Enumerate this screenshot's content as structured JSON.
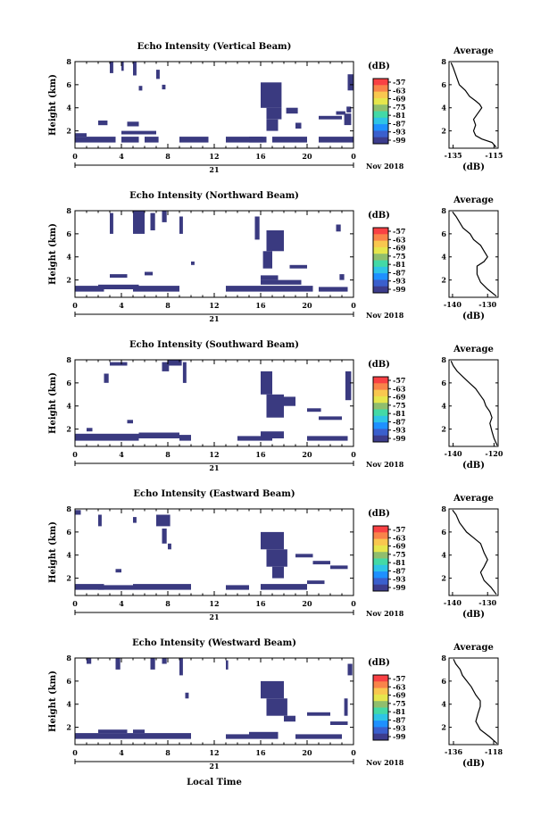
{
  "chart_data": {
    "common": {
      "x_ticks": [
        "0",
        "4",
        "8",
        "12",
        "16",
        "20",
        "0"
      ],
      "x_range": [
        0,
        24
      ],
      "y_ticks": [
        "2",
        "4",
        "6",
        "8"
      ],
      "y_range": [
        0.5,
        8
      ],
      "ylabel": "Height (km)",
      "day_label": "21",
      "month_label": "Nov 2018",
      "xlabel": "Local Time",
      "colorbar_unit": "(dB)",
      "colorbar_ticks": [
        "-57",
        "-63",
        "-69",
        "-75",
        "-81",
        "-87",
        "-93",
        "-99"
      ],
      "colorbar_colors": [
        "#f94144",
        "#f9844a",
        "#f9c74f",
        "#e6e64c",
        "#90be6d",
        "#43d9a6",
        "#2ec4e6",
        "#1e90ff",
        "#3a5fcd",
        "#3c3c8c"
      ],
      "avg_title": "Average",
      "avg_unit": "(dB)",
      "cell_color": "#3a3a80"
    },
    "panels": [
      {
        "type": "heatmap",
        "title": "Echo Intensity (Vertical Beam)",
        "avg_xticks": [
          "-135",
          "-115"
        ],
        "avg_xrange": [
          -137,
          -113
        ],
        "avg_profile": [
          [
            -114,
            0.6
          ],
          [
            -116,
            1.0
          ],
          [
            -121,
            1.3
          ],
          [
            -124,
            1.6
          ],
          [
            -125,
            2.0
          ],
          [
            -124,
            2.5
          ],
          [
            -125,
            3.0
          ],
          [
            -123,
            3.5
          ],
          [
            -121,
            4.0
          ],
          [
            -122,
            4.3
          ],
          [
            -124,
            4.6
          ],
          [
            -127,
            5.0
          ],
          [
            -129,
            5.5
          ],
          [
            -132,
            6.0
          ],
          [
            -133,
            6.5
          ],
          [
            -134,
            7.0
          ],
          [
            -135,
            7.5
          ],
          [
            -136,
            7.9
          ]
        ],
        "cells": [
          [
            0,
            1.0,
            3.5,
            0.5
          ],
          [
            4,
            1.0,
            1.5,
            0.5
          ],
          [
            6,
            1.0,
            1.2,
            0.5
          ],
          [
            9,
            1.0,
            2.5,
            0.5
          ],
          [
            13,
            1.0,
            3.5,
            0.5
          ],
          [
            17,
            1.0,
            3.0,
            0.5
          ],
          [
            21,
            1.0,
            3.0,
            0.5
          ],
          [
            0,
            1.5,
            1.0,
            0.3
          ],
          [
            4,
            1.7,
            3.0,
            0.3
          ],
          [
            2,
            2.5,
            0.8,
            0.4
          ],
          [
            4.5,
            2.4,
            1.0,
            0.4
          ],
          [
            3,
            7.0,
            0.3,
            1.0
          ],
          [
            4,
            7.2,
            0.2,
            0.8
          ],
          [
            5,
            6.8,
            0.3,
            1.2
          ],
          [
            7,
            6.5,
            0.3,
            0.8
          ],
          [
            5.5,
            5.5,
            0.3,
            0.4
          ],
          [
            7.5,
            5.6,
            0.3,
            0.4
          ],
          [
            16,
            4.0,
            1.8,
            2.2
          ],
          [
            16.5,
            3.0,
            1.3,
            1.0
          ],
          [
            16.5,
            2.0,
            1.0,
            1.0
          ],
          [
            15,
            1.0,
            1.2,
            0.5
          ],
          [
            18.2,
            3.5,
            1.0,
            0.5
          ],
          [
            19,
            2.2,
            0.5,
            0.5
          ],
          [
            21,
            3.0,
            2.0,
            0.3
          ],
          [
            22.5,
            3.4,
            0.8,
            0.3
          ],
          [
            23.2,
            2.5,
            0.6,
            1.0
          ],
          [
            23.5,
            5.5,
            0.5,
            1.4
          ],
          [
            23.4,
            3.6,
            0.4,
            0.5
          ]
        ]
      },
      {
        "type": "heatmap",
        "title": "Echo Intensity (Northward Beam)",
        "avg_xticks": [
          "-140",
          "-130"
        ],
        "avg_xrange": [
          -141,
          -127
        ],
        "avg_profile": [
          [
            -127.5,
            0.6
          ],
          [
            -130,
            1.2
          ],
          [
            -132,
            1.8
          ],
          [
            -133,
            2.5
          ],
          [
            -133,
            3.2
          ],
          [
            -131,
            3.6
          ],
          [
            -130,
            4.0
          ],
          [
            -131,
            4.5
          ],
          [
            -132,
            5.0
          ],
          [
            -134,
            5.5
          ],
          [
            -135,
            6.0
          ],
          [
            -137,
            6.5
          ],
          [
            -138,
            7.0
          ],
          [
            -139,
            7.5
          ],
          [
            -140,
            7.9
          ]
        ],
        "cells": [
          [
            0,
            1.0,
            2.5,
            0.5
          ],
          [
            2,
            1.2,
            3.5,
            0.4
          ],
          [
            5,
            1.0,
            4.0,
            0.5
          ],
          [
            13,
            1.0,
            4.0,
            0.5
          ],
          [
            17,
            1.0,
            3.5,
            0.5
          ],
          [
            21,
            1.0,
            2.5,
            0.4
          ],
          [
            16,
            1.6,
            3.5,
            0.4
          ],
          [
            16,
            2.0,
            1.5,
            0.4
          ],
          [
            3,
            2.2,
            1.5,
            0.3
          ],
          [
            6,
            2.4,
            0.7,
            0.3
          ],
          [
            3,
            6.0,
            0.3,
            1.8
          ],
          [
            5,
            6.0,
            1.0,
            2.0
          ],
          [
            6.5,
            6.3,
            0.4,
            1.5
          ],
          [
            7.5,
            7.0,
            0.4,
            1.0
          ],
          [
            9,
            6.0,
            0.3,
            1.5
          ],
          [
            16.5,
            4.5,
            1.5,
            1.8
          ],
          [
            15.5,
            5.5,
            0.4,
            2.0
          ],
          [
            16.2,
            3.0,
            0.8,
            1.5
          ],
          [
            18.5,
            3.0,
            1.5,
            0.3
          ],
          [
            22.5,
            6.2,
            0.4,
            0.6
          ],
          [
            22.8,
            2.0,
            0.4,
            0.5
          ],
          [
            10,
            3.3,
            0.3,
            0.3
          ]
        ]
      },
      {
        "type": "heatmap",
        "title": "Echo Intensity (Southward Beam)",
        "avg_xticks": [
          "-140",
          "-120"
        ],
        "avg_xrange": [
          -142,
          -118
        ],
        "avg_profile": [
          [
            -118.5,
            0.6
          ],
          [
            -120,
            1.2
          ],
          [
            -121,
            1.8
          ],
          [
            -122,
            2.5
          ],
          [
            -121,
            3.0
          ],
          [
            -122,
            3.5
          ],
          [
            -124,
            4.0
          ],
          [
            -125,
            4.5
          ],
          [
            -127,
            5.0
          ],
          [
            -129,
            5.5
          ],
          [
            -132,
            6.0
          ],
          [
            -135,
            6.5
          ],
          [
            -138,
            7.0
          ],
          [
            -140,
            7.5
          ],
          [
            -141,
            7.9
          ]
        ],
        "cells": [
          [
            0,
            1.0,
            1.5,
            0.6
          ],
          [
            1.5,
            1.0,
            4.0,
            0.6
          ],
          [
            5.5,
            1.2,
            3.5,
            0.5
          ],
          [
            9,
            1.0,
            1.0,
            0.5
          ],
          [
            14,
            1.0,
            3.0,
            0.4
          ],
          [
            16,
            1.2,
            2.0,
            0.6
          ],
          [
            20,
            1.0,
            3.5,
            0.4
          ],
          [
            4.5,
            2.5,
            0.5,
            0.3
          ],
          [
            3,
            7.5,
            1.5,
            0.3
          ],
          [
            2.5,
            6.0,
            0.4,
            0.8
          ],
          [
            7.5,
            7.0,
            0.6,
            0.8
          ],
          [
            8,
            7.5,
            1.2,
            0.6
          ],
          [
            9.3,
            6.0,
            0.3,
            1.8
          ],
          [
            16,
            5.0,
            1.0,
            2.0
          ],
          [
            16.5,
            3.0,
            1.5,
            2.0
          ],
          [
            17.5,
            4.0,
            1.5,
            0.8
          ],
          [
            20,
            3.5,
            1.2,
            0.3
          ],
          [
            21,
            2.8,
            2.0,
            0.3
          ],
          [
            23.3,
            4.5,
            0.5,
            2.5
          ],
          [
            1,
            1.8,
            0.5,
            0.3
          ]
        ]
      },
      {
        "type": "heatmap",
        "title": "Echo Intensity (Eastward Beam)",
        "avg_xticks": [
          "-140",
          "-130"
        ],
        "avg_xrange": [
          -141,
          -127
        ],
        "avg_profile": [
          [
            -127.5,
            0.6
          ],
          [
            -129,
            1.2
          ],
          [
            -131,
            1.8
          ],
          [
            -132,
            2.5
          ],
          [
            -131,
            3.0
          ],
          [
            -130,
            3.6
          ],
          [
            -131,
            4.2
          ],
          [
            -132,
            5.0
          ],
          [
            -134,
            5.5
          ],
          [
            -136,
            6.0
          ],
          [
            -138,
            6.8
          ],
          [
            -139,
            7.5
          ],
          [
            -140,
            7.9
          ]
        ],
        "cells": [
          [
            0,
            1.0,
            2.5,
            0.5
          ],
          [
            2,
            1.0,
            3.0,
            0.4
          ],
          [
            5,
            1.0,
            5.0,
            0.5
          ],
          [
            13,
            1.0,
            2.0,
            0.4
          ],
          [
            16,
            1.0,
            4.0,
            0.5
          ],
          [
            20,
            1.5,
            1.5,
            0.3
          ],
          [
            0,
            7.5,
            0.5,
            0.4
          ],
          [
            3.5,
            2.5,
            0.5,
            0.3
          ],
          [
            7,
            6.5,
            1.2,
            1.0
          ],
          [
            7.5,
            5.0,
            0.4,
            1.3
          ],
          [
            8,
            4.5,
            0.3,
            0.5
          ],
          [
            2,
            6.5,
            0.3,
            1.0
          ],
          [
            5,
            6.8,
            0.3,
            0.5
          ],
          [
            16,
            4.5,
            2.0,
            1.5
          ],
          [
            16.5,
            3.0,
            1.8,
            1.5
          ],
          [
            17,
            2.0,
            1.0,
            1.0
          ],
          [
            19,
            3.8,
            1.5,
            0.3
          ],
          [
            20.5,
            3.2,
            1.5,
            0.3
          ],
          [
            22,
            2.8,
            1.5,
            0.3
          ]
        ]
      },
      {
        "type": "heatmap",
        "title": "Echo Intensity (Westward Beam)",
        "avg_xticks": [
          "-136",
          "-118"
        ],
        "avg_xrange": [
          -138,
          -116
        ],
        "avg_profile": [
          [
            -116.5,
            0.6
          ],
          [
            -120,
            1.2
          ],
          [
            -124,
            1.8
          ],
          [
            -126,
            2.5
          ],
          [
            -125,
            3.2
          ],
          [
            -124,
            3.8
          ],
          [
            -124,
            4.3
          ],
          [
            -126,
            4.8
          ],
          [
            -128,
            5.5
          ],
          [
            -130,
            6.0
          ],
          [
            -132,
            6.5
          ],
          [
            -133,
            7.0
          ],
          [
            -135,
            7.5
          ],
          [
            -136,
            7.9
          ]
        ],
        "cells": [
          [
            0,
            1.0,
            4.0,
            0.5
          ],
          [
            4,
            1.0,
            5.0,
            0.5
          ],
          [
            2,
            1.5,
            2.5,
            0.3
          ],
          [
            5,
            1.5,
            1.0,
            0.3
          ],
          [
            9,
            1.0,
            1.0,
            0.5
          ],
          [
            13,
            1.0,
            2.0,
            0.4
          ],
          [
            15,
            1.0,
            2.5,
            0.6
          ],
          [
            19,
            1.0,
            4.0,
            0.4
          ],
          [
            1,
            7.5,
            0.4,
            0.5
          ],
          [
            3.5,
            7.0,
            0.4,
            1.0
          ],
          [
            6.5,
            7.0,
            0.4,
            1.0
          ],
          [
            7.5,
            7.5,
            0.4,
            0.5
          ],
          [
            9,
            6.5,
            0.3,
            1.5
          ],
          [
            9.5,
            4.5,
            0.3,
            0.5
          ],
          [
            13,
            7.0,
            0.2,
            0.8
          ],
          [
            16,
            4.5,
            2.0,
            1.5
          ],
          [
            16.5,
            3.0,
            1.8,
            1.5
          ],
          [
            18,
            2.5,
            1.0,
            0.5
          ],
          [
            20,
            3.0,
            2.0,
            0.3
          ],
          [
            22,
            2.2,
            1.5,
            0.3
          ],
          [
            23.5,
            6.5,
            0.4,
            1.0
          ],
          [
            23.2,
            3.0,
            0.3,
            1.5
          ]
        ]
      }
    ]
  }
}
